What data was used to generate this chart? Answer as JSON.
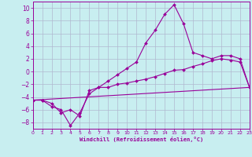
{
  "xlabel": "Windchill (Refroidissement éolien,°C)",
  "bg_color": "#c8eef0",
  "grid_color": "#b0b8d0",
  "line_color": "#990099",
  "xlim": [
    0,
    23
  ],
  "ylim": [
    -9,
    11
  ],
  "xticks": [
    0,
    1,
    2,
    3,
    4,
    5,
    6,
    7,
    8,
    9,
    10,
    11,
    12,
    13,
    14,
    15,
    16,
    17,
    18,
    19,
    20,
    21,
    22,
    23
  ],
  "yticks": [
    -8,
    -6,
    -4,
    -2,
    0,
    2,
    4,
    6,
    8,
    10
  ],
  "line1_x": [
    0,
    1,
    2,
    3,
    4,
    5,
    6,
    7,
    8,
    9,
    10,
    11,
    12,
    13,
    14,
    15,
    16,
    17,
    18,
    19,
    20,
    21,
    22,
    23
  ],
  "line1_y": [
    -4.5,
    -4.5,
    -5.5,
    -6.0,
    -8.5,
    -6.5,
    -3.5,
    -2.5,
    -1.5,
    -0.5,
    0.5,
    1.5,
    4.5,
    6.5,
    9.0,
    10.5,
    7.5,
    3.0,
    2.5,
    2.0,
    2.5,
    2.5,
    2.0,
    -2.5
  ],
  "line2_x": [
    0,
    1,
    2,
    3,
    4,
    5,
    6,
    7,
    8,
    9,
    10,
    11,
    12,
    13,
    14,
    15,
    16,
    17,
    18,
    19,
    20,
    21,
    22,
    23
  ],
  "line2_y": [
    -4.5,
    -4.5,
    -5.0,
    -6.5,
    -6.0,
    -7.0,
    -3.0,
    -2.5,
    -2.5,
    -2.0,
    -1.8,
    -1.5,
    -1.2,
    -0.8,
    -0.3,
    0.2,
    0.3,
    0.8,
    1.2,
    1.7,
    2.0,
    1.8,
    1.5,
    -2.5
  ],
  "line3_x": [
    0,
    23
  ],
  "line3_y": [
    -4.5,
    -2.5
  ]
}
